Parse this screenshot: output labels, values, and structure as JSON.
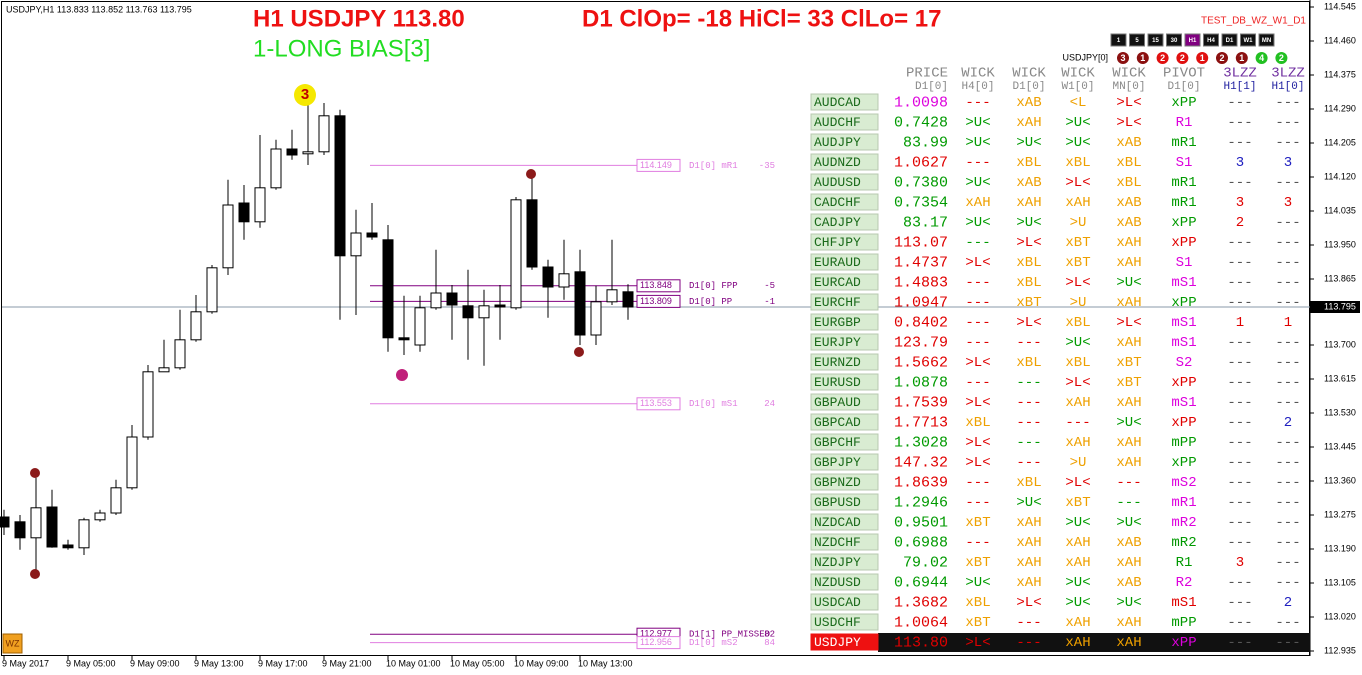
{
  "header": {
    "symbol_info": "USDJPY,H1  113.833 113.852 113.763 113.795",
    "title": "H1 USDJPY 113.80",
    "stats": "D1 ClOp= -18 HiCl= 33 ClLo= 17",
    "bias": "1-LONG BIAS[3]",
    "indicator": "TEST_DB_WZ_W1_D1",
    "logo": "WZ"
  },
  "timeframes": {
    "buttons": [
      "1",
      "5",
      "15",
      "30",
      "H1",
      "H4",
      "D1",
      "W1",
      "MN"
    ],
    "active": 4
  },
  "badges": {
    "label": "USDJPY[0]",
    "values": [
      "3",
      "1",
      "2",
      "2",
      "1",
      "2",
      "1",
      "4",
      "2"
    ],
    "colors": [
      "#8b1010",
      "#8b1010",
      "#e01010",
      "#e01010",
      "#e01010",
      "#8b1010",
      "#8b1010",
      "#22c022",
      "#22c022"
    ]
  },
  "chart": {
    "ylim": [
      112.9225,
      114.5625
    ],
    "yticks": [
      114.545,
      {
        "value": 114.46,
        "label": "114.460"
      },
      114.375,
      {
        "value": 114.29,
        "label": "114.290"
      },
      114.205,
      {
        "value": 114.12,
        "label": "114.120"
      },
      114.035,
      {
        "value": 113.95,
        "label": "113.950"
      },
      113.865,
      {
        "value": 113.7,
        "label": "113.700"
      },
      113.615,
      {
        "value": 113.53,
        "label": "113.530"
      },
      113.445,
      {
        "value": 113.36,
        "label": "113.360"
      },
      113.275,
      {
        "value": 113.19,
        "label": "113.190"
      },
      113.105,
      {
        "value": 113.02,
        "label": "113.020"
      },
      112.935
    ],
    "x_labels": [
      "9 May 2017",
      "9 May 05:00",
      "9 May 09:00",
      "9 May 13:00",
      "9 May 17:00",
      "9 May 21:00",
      "10 May 01:00",
      "10 May 05:00",
      "10 May 09:00",
      "10 May 13:00"
    ],
    "current_price": 113.795,
    "candles": [
      {
        "open": 113.27,
        "high": 113.288,
        "low": 113.225,
        "close": 113.245
      },
      {
        "open": 113.258,
        "high": 113.275,
        "low": 113.188,
        "close": 113.218
      },
      {
        "open": 113.218,
        "high": 113.368,
        "low": 113.138,
        "close": 113.293
      },
      {
        "open": 113.295,
        "high": 113.338,
        "low": 113.193,
        "close": 113.195
      },
      {
        "open": 113.2,
        "high": 113.213,
        "low": 113.188,
        "close": 113.193
      },
      {
        "open": 113.193,
        "high": 113.268,
        "low": 113.175,
        "close": 113.263
      },
      {
        "open": 113.263,
        "high": 113.288,
        "low": 113.258,
        "close": 113.28
      },
      {
        "open": 113.28,
        "high": 113.363,
        "low": 113.275,
        "close": 113.343
      },
      {
        "open": 113.343,
        "high": 113.5,
        "low": 113.338,
        "close": 113.47
      },
      {
        "open": 113.47,
        "high": 113.65,
        "low": 113.463,
        "close": 113.633
      },
      {
        "open": 113.633,
        "high": 113.713,
        "low": 113.633,
        "close": 113.643
      },
      {
        "open": 113.643,
        "high": 113.788,
        "low": 113.638,
        "close": 113.713
      },
      {
        "open": 113.713,
        "high": 113.825,
        "low": 113.708,
        "close": 113.783
      },
      {
        "open": 113.783,
        "high": 113.9,
        "low": 113.778,
        "close": 113.893
      },
      {
        "open": 113.893,
        "high": 114.113,
        "low": 113.875,
        "close": 114.05
      },
      {
        "open": 114.055,
        "high": 114.1,
        "low": 113.963,
        "close": 114.008
      },
      {
        "open": 114.008,
        "high": 114.225,
        "low": 113.993,
        "close": 114.093
      },
      {
        "open": 114.093,
        "high": 114.213,
        "low": 114.088,
        "close": 114.19
      },
      {
        "open": 114.19,
        "high": 114.238,
        "low": 114.163,
        "close": 114.175
      },
      {
        "open": 114.178,
        "high": 114.313,
        "low": 114.15,
        "close": 114.183
      },
      {
        "open": 114.183,
        "high": 114.305,
        "low": 114.175,
        "close": 114.273
      },
      {
        "open": 114.273,
        "high": 114.288,
        "low": 113.763,
        "close": 113.923
      },
      {
        "open": 113.923,
        "high": 114.038,
        "low": 113.775,
        "close": 113.98
      },
      {
        "open": 113.98,
        "high": 114.055,
        "low": 113.963,
        "close": 113.97
      },
      {
        "open": 113.963,
        "high": 114.0,
        "low": 113.683,
        "close": 113.718
      },
      {
        "open": 113.718,
        "high": 113.823,
        "low": 113.675,
        "close": 113.713
      },
      {
        "open": 113.7,
        "high": 113.823,
        "low": 113.683,
        "close": 113.793
      },
      {
        "open": 113.793,
        "high": 113.938,
        "low": 113.788,
        "close": 113.83
      },
      {
        "open": 113.83,
        "high": 113.85,
        "low": 113.713,
        "close": 113.8
      },
      {
        "open": 113.798,
        "high": 113.888,
        "low": 113.663,
        "close": 113.768
      },
      {
        "open": 113.768,
        "high": 113.838,
        "low": 113.648,
        "close": 113.798
      },
      {
        "open": 113.8,
        "high": 113.85,
        "low": 113.713,
        "close": 113.795
      },
      {
        "open": 113.793,
        "high": 114.07,
        "low": 113.788,
        "close": 114.063
      },
      {
        "open": 114.063,
        "high": 114.118,
        "low": 113.888,
        "close": 113.895
      },
      {
        "open": 113.895,
        "high": 113.913,
        "low": 113.768,
        "close": 113.845
      },
      {
        "open": 113.845,
        "high": 113.963,
        "low": 113.813,
        "close": 113.878
      },
      {
        "open": 113.883,
        "high": 113.938,
        "low": 113.7,
        "close": 113.725
      },
      {
        "open": 113.725,
        "high": 113.848,
        "low": 113.7,
        "close": 113.808
      },
      {
        "open": 113.808,
        "high": 113.963,
        "low": 113.8,
        "close": 113.838
      },
      {
        "open": 113.833,
        "high": 113.852,
        "low": 113.763,
        "close": 113.795
      }
    ],
    "levels": [
      {
        "value": 114.149,
        "name": "D1[0] mR1",
        "offset": -35,
        "color": "#e07ee0"
      },
      {
        "value": 113.848,
        "name": "D1[0] FPP",
        "offset": -5,
        "color": "#800080"
      },
      {
        "value": 113.809,
        "name": "D1[0] PP",
        "offset": -1,
        "color": "#800080"
      },
      {
        "value": 113.553,
        "name": "D1[0] mS1",
        "offset": 24,
        "color": "#e07ee0"
      },
      {
        "value": 112.977,
        "name": "D1[1] PP_MISSED",
        "offset": 82,
        "color": "#800080"
      },
      {
        "value": 112.956,
        "name": "D1[0] mS2",
        "offset": 84,
        "color": "#e07ee0"
      }
    ]
  },
  "table": {
    "palette": {
      "r": "#e00000",
      "g": "#009a00",
      "o": "#eea000",
      "m": "#dd00dd",
      "b": "#2020c0",
      "k": "#555555"
    },
    "headers": [
      [
        "PRICE",
        "WICK",
        "WICK",
        "WICK",
        "WICK",
        "PIVOT",
        "3LZZ",
        "3LZZ"
      ],
      [
        "D1[0]",
        "H4[0]",
        "D1[0]",
        "W1[0]",
        "MN[0]",
        "D1[0]",
        "H1[1]",
        "H1[0]"
      ]
    ],
    "rows": [
      {
        "symbol": "AUDCAD",
        "price": "1.0098",
        "cells": [
          "---",
          "xAB",
          "<L",
          ">L<",
          "xPP",
          "---",
          "---"
        ],
        "colors": "mroorgkk"
      },
      {
        "symbol": "AUDCHF",
        "price": "0.7428",
        "cells": [
          ">U<",
          "xAH",
          ">U<",
          ">L<",
          "R1",
          "---",
          "---"
        ],
        "colors": "ggogrmkk"
      },
      {
        "symbol": "AUDJPY",
        "price": "83.99",
        "cells": [
          ">U<",
          ">U<",
          ">U<",
          "xAB",
          "mR1",
          "---",
          "---"
        ],
        "colors": "ggggogkk"
      },
      {
        "symbol": "AUDNZD",
        "price": "1.0627",
        "cells": [
          "---",
          "xBL",
          "xBL",
          "xBL",
          "S1",
          "3",
          "3"
        ],
        "colors": "rrooombb"
      },
      {
        "symbol": "AUDUSD",
        "price": "0.7380",
        "cells": [
          ">U<",
          "xAB",
          ">L<",
          "xBL",
          "mR1",
          "---",
          "---"
        ],
        "colors": "ggorogkk"
      },
      {
        "symbol": "CADCHF",
        "price": "0.7354",
        "cells": [
          "xAH",
          "xAH",
          "xAH",
          "xAB",
          "mR1",
          "3",
          "3"
        ],
        "colors": "goooogrr"
      },
      {
        "symbol": "CADJPY",
        "price": "83.17",
        "cells": [
          ">U<",
          ">U<",
          ">U",
          "xAB",
          "xPP",
          "2",
          "---"
        ],
        "colors": "gggoogrk"
      },
      {
        "symbol": "CHFJPY",
        "price": "113.07",
        "cells": [
          "---",
          ">L<",
          "xBT",
          "xAH",
          "xPP",
          "---",
          "---"
        ],
        "colors": "rgroorkk"
      },
      {
        "symbol": "EURAUD",
        "price": "1.4737",
        "cells": [
          ">L<",
          "xBL",
          "xBT",
          "xAH",
          "S1",
          "---",
          "---"
        ],
        "colors": "rrooomkk"
      },
      {
        "symbol": "EURCAD",
        "price": "1.4883",
        "cells": [
          "---",
          "xBL",
          ">L<",
          ">U<",
          "mS1",
          "---",
          "---"
        ],
        "colors": "rrorgmkk"
      },
      {
        "symbol": "EURCHF",
        "price": "1.0947",
        "cells": [
          "---",
          "xBT",
          ">U",
          "xAH",
          "xPP",
          "---",
          "---"
        ],
        "colors": "rrooogkk"
      },
      {
        "symbol": "EURGBP",
        "price": "0.8402",
        "cells": [
          "---",
          ">L<",
          "xBL",
          ">L<",
          "mS1",
          "1",
          "1"
        ],
        "colors": "rrrormrr"
      },
      {
        "symbol": "EURJPY",
        "price": "123.79",
        "cells": [
          "---",
          "---",
          ">U<",
          "xAH",
          "mS1",
          "---",
          "---"
        ],
        "colors": "rrrgomkk"
      },
      {
        "symbol": "EURNZD",
        "price": "1.5662",
        "cells": [
          ">L<",
          "xBL",
          "xBL",
          "xBT",
          "S2",
          "---",
          "---"
        ],
        "colors": "rrooomkk"
      },
      {
        "symbol": "EURUSD",
        "price": "1.0878",
        "cells": [
          "---",
          "---",
          ">L<",
          "xBT",
          "xPP",
          "---",
          "---"
        ],
        "colors": "grgrorkk"
      },
      {
        "symbol": "GBPAUD",
        "price": "1.7539",
        "cells": [
          ">L<",
          "---",
          "xAH",
          "xAH",
          "mS1",
          "---",
          "---"
        ],
        "colors": "rrroomkk"
      },
      {
        "symbol": "GBPCAD",
        "price": "1.7713",
        "cells": [
          "xBL",
          "---",
          "---",
          ">U<",
          "xPP",
          "---",
          "2"
        ],
        "colors": "rorrgrkb"
      },
      {
        "symbol": "GBPCHF",
        "price": "1.3028",
        "cells": [
          ">L<",
          "---",
          "xAH",
          "xAH",
          "mPP",
          "---",
          "---"
        ],
        "colors": "grgoogkk"
      },
      {
        "symbol": "GBPJPY",
        "price": "147.32",
        "cells": [
          ">L<",
          "---",
          ">U",
          "xAH",
          "xPP",
          "---",
          "---"
        ],
        "colors": "rrroogkk"
      },
      {
        "symbol": "GBPNZD",
        "price": "1.8639",
        "cells": [
          "---",
          "xBL",
          ">L<",
          "---",
          "mS2",
          "---",
          "---"
        ],
        "colors": "rrorrmkk"
      },
      {
        "symbol": "GBPUSD",
        "price": "1.2946",
        "cells": [
          "---",
          ">U<",
          "xBT",
          "---",
          "mR1",
          "---",
          "---"
        ],
        "colors": "grgogmkk"
      },
      {
        "symbol": "NZDCAD",
        "price": "0.9501",
        "cells": [
          "xBT",
          "xAH",
          ">U<",
          ">U<",
          "mR2",
          "---",
          "---"
        ],
        "colors": "googgmkk"
      },
      {
        "symbol": "NZDCHF",
        "price": "0.6988",
        "cells": [
          "---",
          "xAH",
          "xAH",
          "xAB",
          "mR2",
          "---",
          "---"
        ],
        "colors": "grooogkk"
      },
      {
        "symbol": "NZDJPY",
        "price": "79.02",
        "cells": [
          "xBT",
          "xAH",
          "xAH",
          "xAH",
          "R1",
          "3",
          "---"
        ],
        "colors": "goooogrk"
      },
      {
        "symbol": "NZDUSD",
        "price": "0.6944",
        "cells": [
          ">U<",
          "xAH",
          ">U<",
          "xAB",
          "R2",
          "---",
          "---"
        ],
        "colors": "ggogomkk"
      },
      {
        "symbol": "USDCAD",
        "price": "1.3682",
        "cells": [
          "xBL",
          ">L<",
          ">U<",
          ">U<",
          "mS1",
          "---",
          "2"
        ],
        "colors": "rorggrkb"
      },
      {
        "symbol": "USDCHF",
        "price": "1.0064",
        "cells": [
          "xBT",
          "---",
          "xAH",
          "xAH",
          "mPP",
          "---",
          "---"
        ],
        "colors": "roroogkk"
      },
      {
        "symbol": "USDJPY",
        "price": "113.80",
        "cells": [
          ">L<",
          "---",
          "xAH",
          "xAH",
          "xPP",
          "---",
          "---"
        ],
        "colors": "rrroomkk"
      }
    ]
  }
}
